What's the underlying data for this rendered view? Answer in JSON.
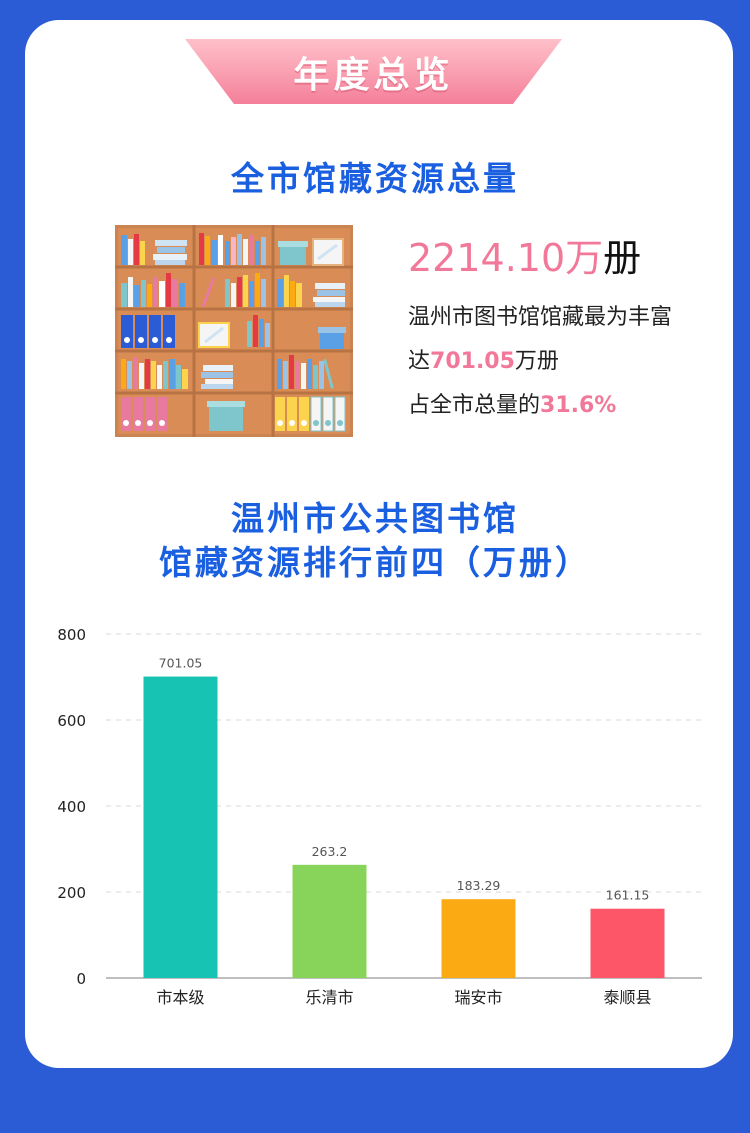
{
  "banner": {
    "title": "年度总览"
  },
  "section1": {
    "title": "全市馆藏资源总量",
    "total_value": "2214.10",
    "total_unit_1": "万",
    "total_unit_2": "册",
    "line1": "温州市图书馆馆藏最为丰富",
    "line2_prefix": "达",
    "line2_value": "701.05",
    "line2_suffix": "万册",
    "line3_prefix": "占全市总量的",
    "line3_value": "31.6%"
  },
  "section2": {
    "title_line1": "温州市公共图书馆",
    "title_line2": "馆藏资源排行前四（万册）"
  },
  "icons": {
    "illustration": "bookshelf-icon"
  },
  "chart_data": {
    "type": "bar",
    "categories": [
      "市本级",
      "乐清市",
      "瑞安市",
      "泰顺县"
    ],
    "values": [
      701.05,
      263.2,
      183.29,
      161.15
    ],
    "value_labels": [
      "701.05",
      "263.2",
      "183.29",
      "161.15"
    ],
    "colors": [
      "#17c3b2",
      "#88d45a",
      "#fcaa14",
      "#fc5668"
    ],
    "yticks": [
      0,
      200,
      400,
      600,
      800
    ],
    "ylim": [
      0,
      800
    ],
    "grid": true,
    "legend": "none"
  }
}
